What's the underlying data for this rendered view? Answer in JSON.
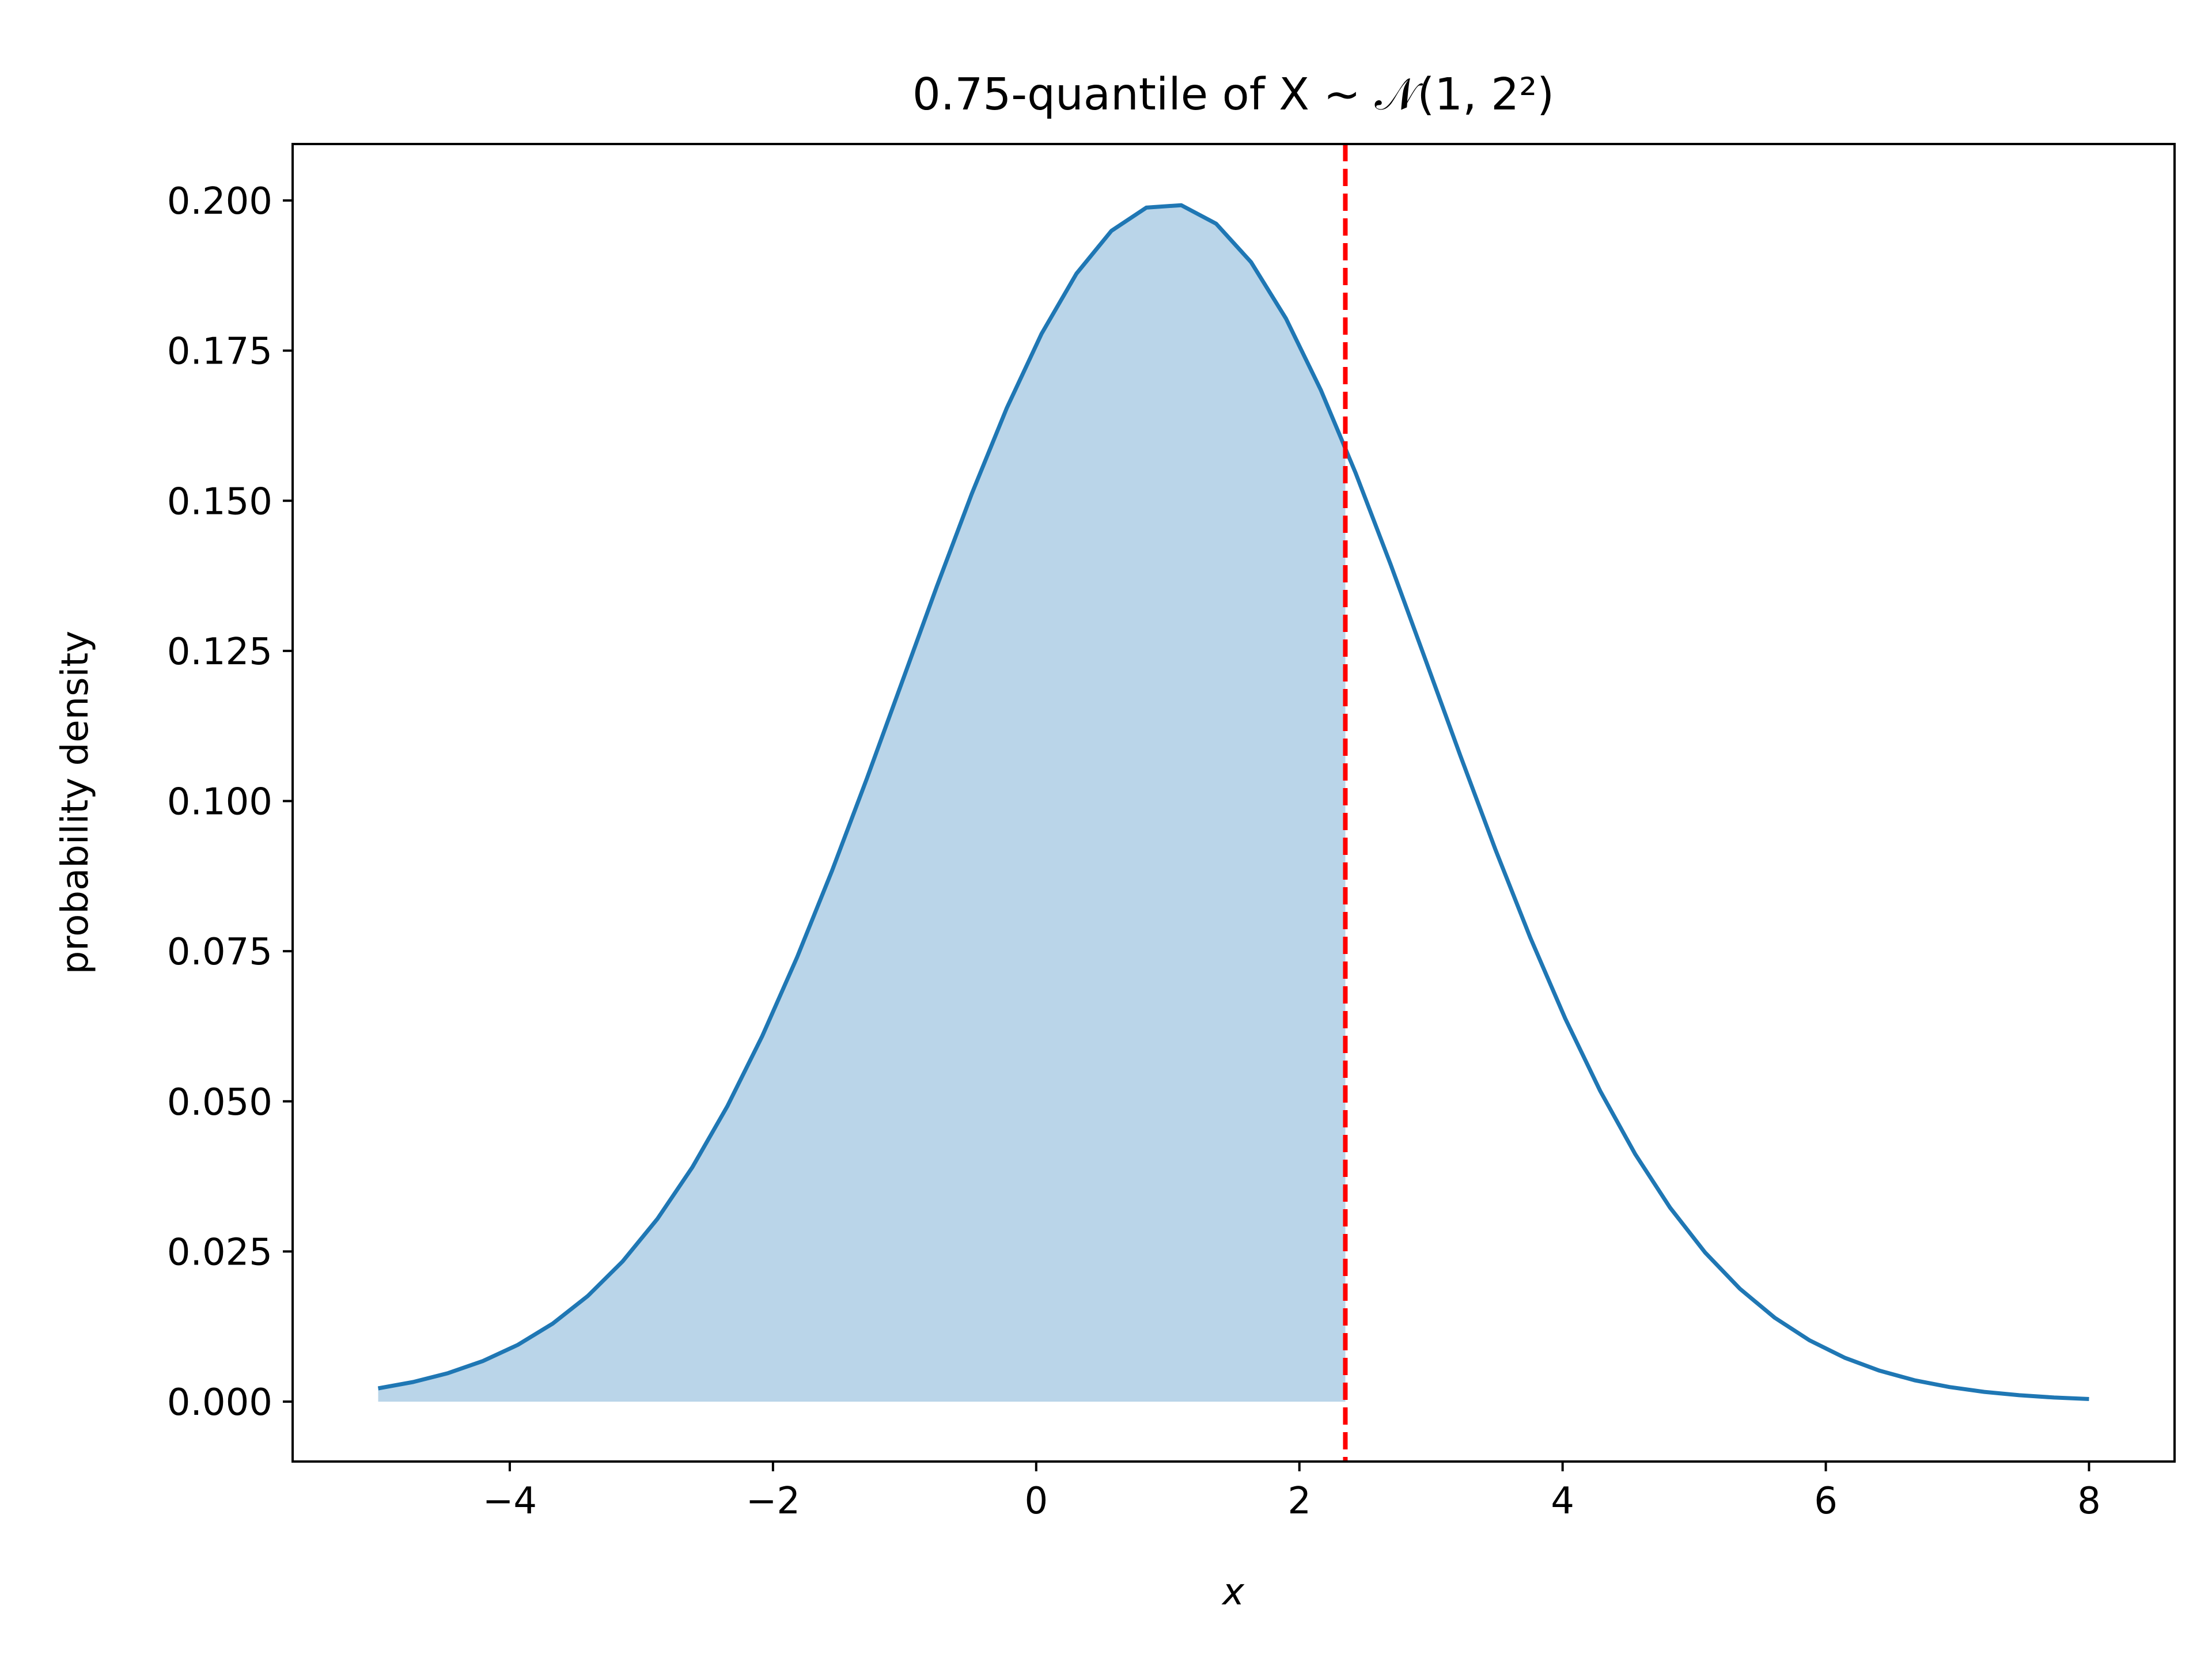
{
  "chart_data": {
    "type": "line",
    "title": "0.75-quantile of X ~ 𝒩(1, 2²)",
    "xlabel": "x",
    "ylabel": "probability density",
    "xlim": [
      -5.65,
      8.65
    ],
    "ylim": [
      -0.00997,
      0.2094
    ],
    "xticks": [
      -4,
      -2,
      0,
      2,
      4,
      6,
      8
    ],
    "xtick_labels": [
      "−4",
      "−2",
      "0",
      "2",
      "4",
      "6",
      "8"
    ],
    "yticks": [
      0.0,
      0.025,
      0.05,
      0.075,
      0.1,
      0.125,
      0.15,
      0.175,
      0.2
    ],
    "ytick_labels": [
      "0.000",
      "0.025",
      "0.050",
      "0.075",
      "0.100",
      "0.125",
      "0.150",
      "0.175",
      "0.200"
    ],
    "grid": false,
    "legend": "none",
    "distribution": {
      "mean": 1,
      "sd": 2
    },
    "x_range": [
      -5,
      8
    ],
    "num_points": 50,
    "quantile_level": 0.75,
    "quantile_x": 2.349,
    "colors": {
      "curve": "#1f77b4",
      "fill": "#bad5e9",
      "quantile_line": "#ff0000",
      "axes": "#000000"
    }
  }
}
